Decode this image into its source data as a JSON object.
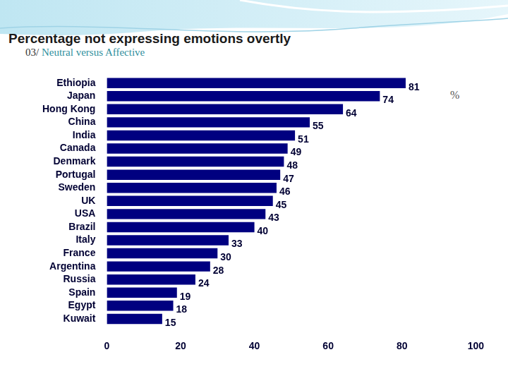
{
  "chart_data": {
    "type": "bar",
    "orientation": "horizontal",
    "title": "Percentage not expressing emotions overtly",
    "subtitle": "03/ Neutral versus Affective",
    "annotations": [
      "%"
    ],
    "categories": [
      "Ethiopia",
      "Japan",
      "Hong Kong",
      "China",
      "India",
      "Canada",
      "Denmark",
      "Portugal",
      "Sweden",
      "UK",
      "USA",
      "Brazil",
      "Italy",
      "France",
      "Argentina",
      "Russia",
      "Spain",
      "Egypt",
      "Kuwait"
    ],
    "values": [
      81,
      74,
      64,
      55,
      51,
      49,
      48,
      47,
      46,
      45,
      43,
      40,
      33,
      30,
      28,
      24,
      19,
      18,
      15
    ],
    "color": "#000080",
    "xlim": [
      0,
      100
    ],
    "xticks": [
      0,
      20,
      40,
      60,
      80,
      100
    ],
    "grid": false,
    "data_labels": true
  }
}
